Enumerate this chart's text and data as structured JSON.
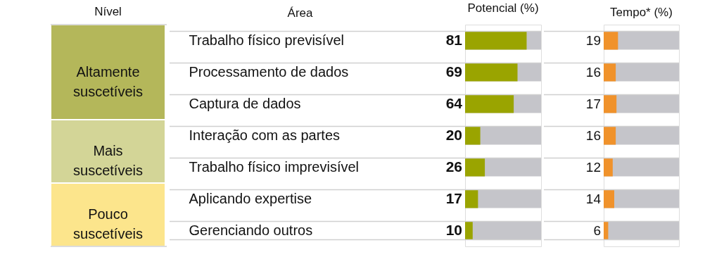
{
  "chart_data": [
    {
      "type": "other",
      "title": "Nível",
      "categories": [
        "Altamente suscetíveis",
        null,
        null,
        "Mais suscetíveis",
        null,
        "Pouco suscetíveis",
        null
      ],
      "colors": [
        "#b4b75a",
        "#b4b75a",
        "#b4b75a",
        "#d3d597",
        "#d3d597",
        "#fce58c",
        "#fce58c"
      ]
    },
    {
      "type": "bar",
      "orientation": "horizontal",
      "title": "Potencial (%)",
      "ylabel": "Área",
      "categories": [
        "Trabalho físico previsível",
        "Processamento de dados",
        "Captura de dados",
        "Interação com as partes",
        "Trabalho físico imprevisível",
        "Aplicando expertise",
        "Gerenciando outros"
      ],
      "values": [
        81,
        69,
        64,
        20,
        26,
        17,
        10
      ],
      "color": "#9aa400",
      "xlim": [
        0,
        100
      ],
      "bands": [
        {
          "axis": "x",
          "from": 0,
          "to": 100,
          "color": "#c5c5ca"
        }
      ],
      "data_labels": true,
      "tick_labels": "y",
      "grid": "y"
    },
    {
      "type": "bar",
      "orientation": "horizontal",
      "title": "Tempo* (%)",
      "categories": [
        null,
        null,
        null,
        null,
        null,
        null,
        null
      ],
      "values": [
        19,
        16,
        17,
        16,
        12,
        14,
        6
      ],
      "color": "#f0922b",
      "xlim": [
        0,
        100
      ],
      "bands": [
        {
          "axis": "x",
          "from": 0,
          "to": 100,
          "color": "#c5c5ca"
        }
      ],
      "data_labels": true,
      "tick_labels": false,
      "grid": "y"
    }
  ]
}
